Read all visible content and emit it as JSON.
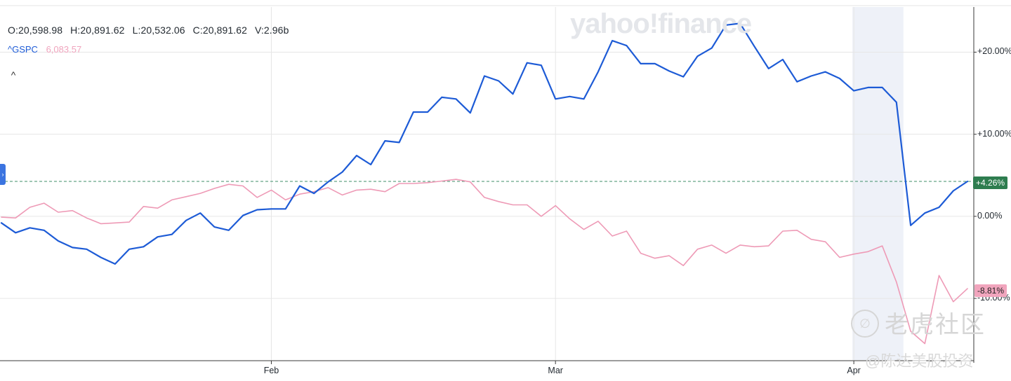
{
  "header": {
    "ohlc": {
      "open": "O:20,598.98",
      "high": "H:20,891.62",
      "low": "L:20,532.06",
      "close": "C:20,891.62",
      "volume": "V:2.96b"
    },
    "compare_symbol": "^GSPC",
    "compare_value": "6,083.57",
    "collapse_caret": "^",
    "side_tab_icon": "›"
  },
  "watermarks": {
    "brand": "yahoo!finance",
    "community": "老虎社区",
    "community_logo": "∅",
    "author": "@陈达美股投资"
  },
  "colors": {
    "main_series": "#1d5bd6",
    "compare_series": "#ee9ab6",
    "positive_badge": "#2e7d4f",
    "highlight_band": "#eef1f8",
    "gridline": "#e6e6e6"
  },
  "chart_data": {
    "type": "line",
    "y_unit": "percent change",
    "ylim": [
      -17.5,
      25.5
    ],
    "y_ticks": [
      "+20.00%",
      "+10.00%",
      "0.00%",
      "-10.00%"
    ],
    "y_tick_values": [
      20,
      10,
      0,
      -10
    ],
    "x_ticks": [
      "Feb",
      "Mar",
      "Apr"
    ],
    "x_tick_index": [
      19,
      39,
      60
    ],
    "reference_line": 4.26,
    "highlight_range_index": [
      60,
      63
    ],
    "grid": true,
    "legend": "top-left",
    "last_value_labels": [
      "+4.26%",
      "-8.81%"
    ],
    "series": [
      {
        "name": "",
        "values": [
          -0.8,
          -2.0,
          -1.4,
          -1.7,
          -3.0,
          -3.8,
          -4.0,
          -5.0,
          -5.8,
          -4.0,
          -3.7,
          -2.5,
          -2.2,
          -0.5,
          0.4,
          -1.3,
          -1.7,
          0.1,
          0.8,
          0.9,
          0.9,
          3.7,
          2.8,
          4.2,
          5.4,
          7.4,
          6.3,
          9.2,
          9.0,
          12.7,
          12.7,
          14.5,
          14.3,
          12.6,
          17.1,
          16.5,
          14.9,
          18.7,
          18.4,
          14.3,
          14.6,
          14.3,
          17.6,
          21.4,
          20.8,
          18.6,
          18.6,
          17.7,
          17.0,
          19.5,
          20.5,
          23.3,
          23.5,
          20.7,
          18.0,
          19.1,
          16.4,
          17.1,
          17.6,
          16.8,
          15.3,
          15.7,
          15.7,
          13.9,
          -1.1,
          0.4,
          1.1,
          3.1,
          4.26
        ]
      },
      {
        "name": "",
        "values": [
          -0.1,
          -0.2,
          1.1,
          1.6,
          0.5,
          0.7,
          -0.2,
          -0.9,
          -0.8,
          -0.7,
          1.2,
          1.0,
          2.0,
          2.4,
          2.8,
          3.4,
          3.9,
          3.7,
          2.3,
          3.2,
          2.0,
          2.7,
          3.0,
          3.5,
          2.6,
          3.2,
          3.3,
          3.0,
          4.0,
          4.0,
          4.1,
          4.3,
          4.5,
          4.2,
          2.3,
          1.8,
          1.4,
          1.4,
          0.0,
          1.3,
          -0.3,
          -1.6,
          -0.6,
          -2.4,
          -1.8,
          -4.5,
          -5.1,
          -4.8,
          -6.0,
          -4.0,
          -3.5,
          -4.5,
          -3.5,
          -3.7,
          -3.6,
          -1.8,
          -1.7,
          -2.8,
          -3.1,
          -5.0,
          -4.6,
          -4.3,
          -3.6,
          -8.0,
          -14.0,
          -15.5,
          -7.2,
          -10.4,
          -8.81
        ]
      }
    ]
  }
}
